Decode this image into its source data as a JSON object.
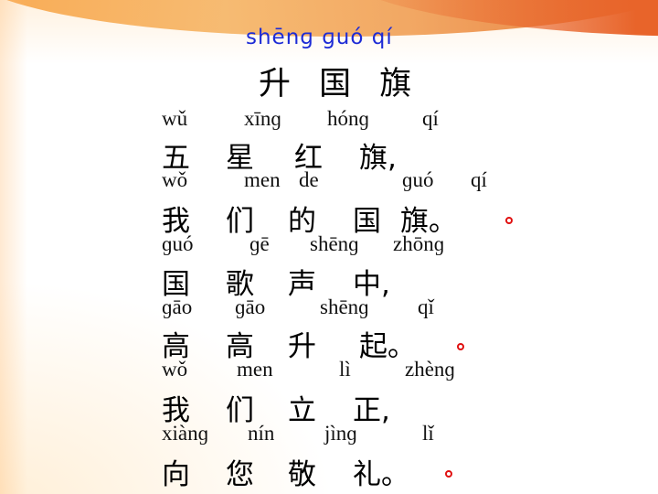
{
  "title": {
    "pinyin": "shēnɡ ɡuó qí",
    "chinese": "升 国 旗"
  },
  "lines": [
    {
      "pinyin": [
        "wǔ",
        "xīnɡ",
        "hónɡ",
        "qí"
      ],
      "chars": [
        "五",
        "星",
        "红",
        "旗,"
      ]
    },
    {
      "pinyin": [
        "wǒ",
        "men",
        "de",
        "ɡuó",
        "qí"
      ],
      "chars": [
        "我",
        "们",
        "的",
        "国",
        "旗。"
      ]
    },
    {
      "pinyin": [
        "ɡuó",
        "ɡē",
        "shēnɡ",
        "zhōnɡ"
      ],
      "chars": [
        "国",
        "歌",
        "声",
        "中,"
      ]
    },
    {
      "pinyin": [
        "ɡāo",
        "ɡāo",
        "shēnɡ",
        "qǐ"
      ],
      "chars": [
        "高",
        "高",
        "升",
        "起。"
      ]
    },
    {
      "pinyin": [
        "wǒ",
        "men",
        "lì",
        "zhènɡ"
      ],
      "chars": [
        "我",
        "们",
        "立",
        "正,"
      ]
    },
    {
      "pinyin": [
        "xiànɡ",
        "nín",
        "jìnɡ",
        "lǐ"
      ],
      "chars": [
        "向",
        "您",
        "敬",
        "礼。"
      ]
    }
  ],
  "colors": {
    "title_pinyin": "#1d2bd6",
    "mark": "#e01010",
    "text": "#000000"
  }
}
